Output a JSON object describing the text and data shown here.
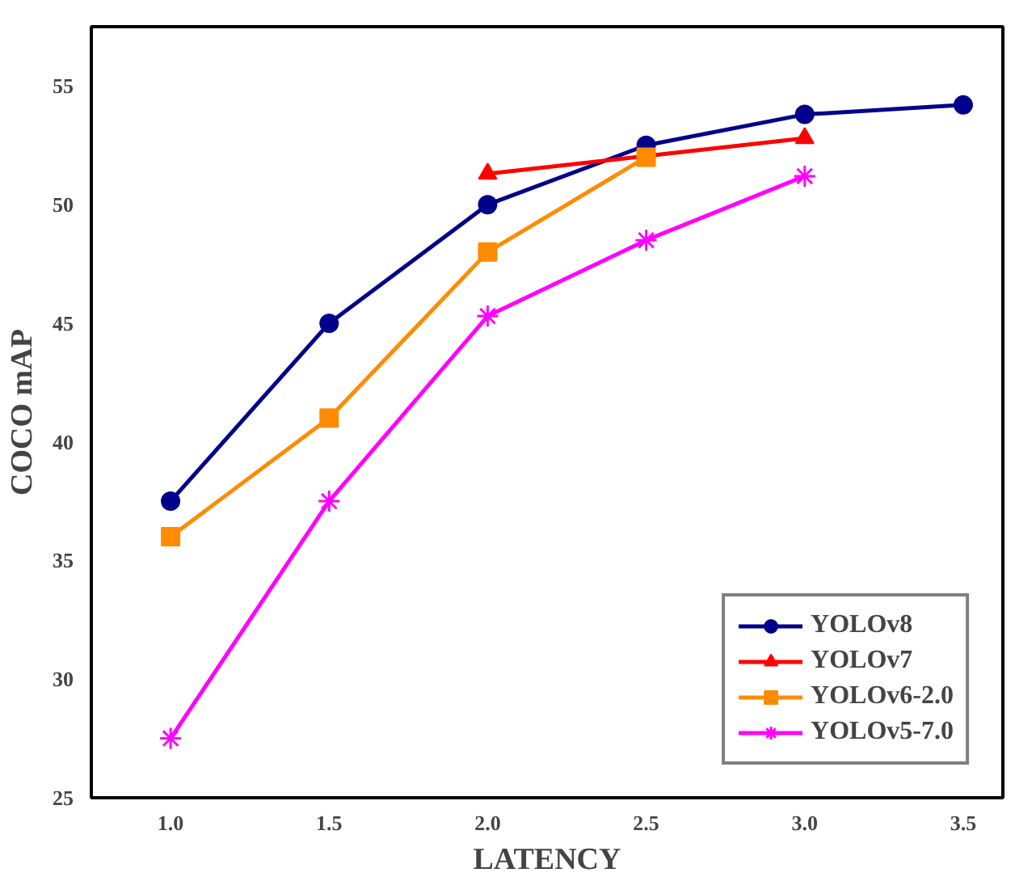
{
  "chart_data": {
    "type": "line",
    "xlabel": "LATENCY",
    "ylabel": "COCO mAP",
    "xlim": [
      0.75,
      3.625
    ],
    "xticks": [
      {
        "value": 1,
        "label": "1.0"
      },
      {
        "value": 1.5,
        "label": "1.5"
      },
      {
        "value": 2,
        "label": "2.0"
      },
      {
        "value": 2.5,
        "label": "2.5"
      },
      {
        "value": 3,
        "label": "3.0"
      },
      {
        "value": 3.5,
        "label": "3.5"
      }
    ],
    "ylim": [
      25,
      57.5
    ],
    "yticks": [
      25,
      30,
      35,
      40,
      45,
      50,
      55
    ],
    "grid": false,
    "legend": "bottom right",
    "series": [
      {
        "name": "YOLOv8",
        "color": "#00008b",
        "marker": "circle",
        "x": [
          1.0,
          1.5,
          2.0,
          2.5,
          3.0,
          3.5
        ],
        "values": [
          37.5,
          45,
          50,
          52.5,
          53.8,
          54.2
        ]
      },
      {
        "name": "YOLOv7",
        "color": "#ff0000",
        "marker": "triangle",
        "x": [
          2.0,
          3.0
        ],
        "values": [
          51.3,
          52.8
        ]
      },
      {
        "name": "YOLOv6-2.0",
        "color": "#ff8c00",
        "marker": "square",
        "x": [
          1.0,
          1.5,
          2.0,
          2.5
        ],
        "values": [
          36,
          41,
          48,
          52
        ]
      },
      {
        "name": "YOLOv5-7.0",
        "color": "#ff00ff",
        "marker": "cross",
        "x": [
          1.0,
          1.5,
          2.0,
          2.5,
          3.0
        ],
        "values": [
          27.5,
          37.5,
          45.3,
          48.5,
          51.2
        ]
      }
    ]
  }
}
